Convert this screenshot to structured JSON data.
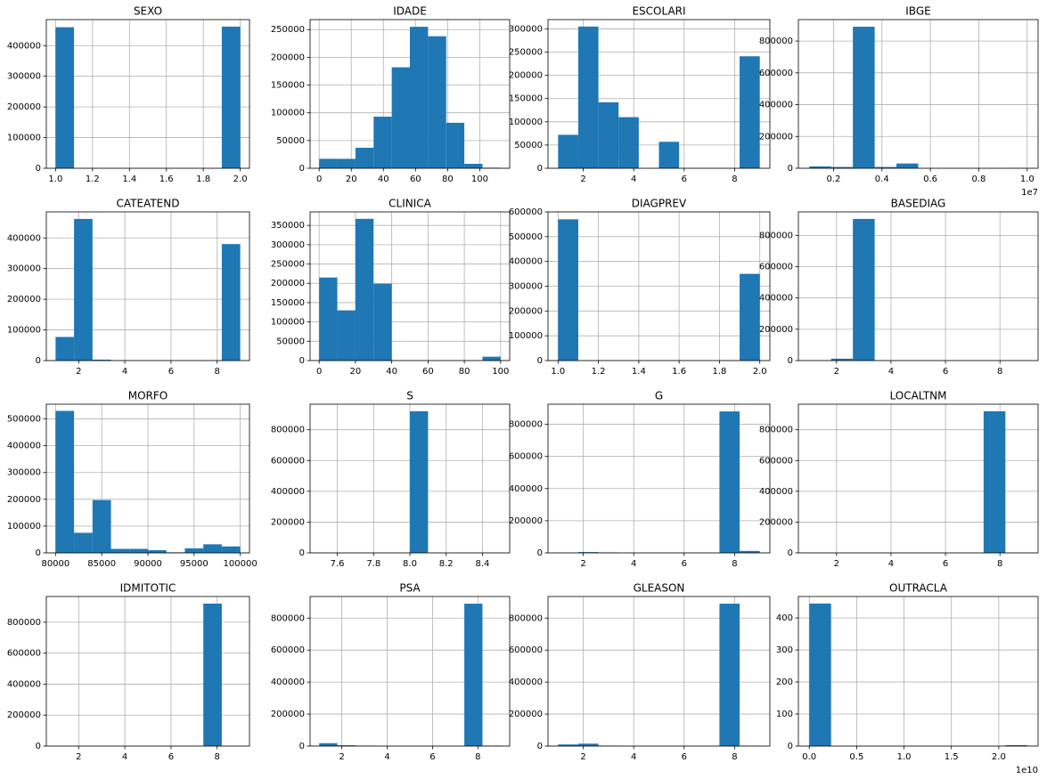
{
  "chart_data": [
    {
      "type": "histogram",
      "title": "SEXO",
      "color": "#1f77b4",
      "grid": true,
      "bins": [
        1.0,
        1.1,
        1.2,
        1.3,
        1.4,
        1.5,
        1.6,
        1.7,
        1.8,
        1.9,
        2.0
      ],
      "counts": [
        460000,
        0,
        0,
        0,
        0,
        0,
        0,
        0,
        0,
        462000
      ],
      "xlim": [
        0.95,
        2.05
      ],
      "xticks": [
        {
          "value": 1.0,
          "label": "1.0"
        },
        1.2,
        1.4,
        1.6,
        1.8,
        {
          "value": 2.0,
          "label": "2.0"
        }
      ],
      "ylim": [
        0,
        485000
      ],
      "yticks": [
        0,
        100000,
        200000,
        300000,
        400000
      ]
    },
    {
      "type": "histogram",
      "title": "IDADE",
      "color": "#1f77b4",
      "grid": true,
      "bins": [
        0,
        11.3,
        22.6,
        33.9,
        45.2,
        56.5,
        67.8,
        79.1,
        90.4,
        101.7,
        113
      ],
      "counts": [
        17000,
        17000,
        37000,
        93000,
        182000,
        255000,
        238000,
        82000,
        8000,
        1000
      ],
      "xlim": [
        -5.65,
        118.65
      ],
      "xticks": [
        0,
        20,
        40,
        60,
        80,
        100
      ],
      "ylim": [
        0,
        268000
      ],
      "yticks": [
        0,
        50000,
        100000,
        150000,
        200000,
        250000
      ]
    },
    {
      "type": "histogram",
      "title": "ESCOLARI",
      "color": "#1f77b4",
      "grid": true,
      "bins": [
        1,
        1.8,
        2.6,
        3.4,
        4.2,
        5,
        5.8,
        6.6,
        7.4,
        8.2,
        9
      ],
      "counts": [
        72000,
        305000,
        142000,
        110000,
        0,
        57000,
        0,
        0,
        0,
        241000
      ],
      "xlim": [
        0.6,
        9.4
      ],
      "xticks": [
        2,
        4,
        6,
        8
      ],
      "ylim": [
        0,
        320000
      ],
      "yticks": [
        0,
        50000,
        100000,
        150000,
        200000,
        250000,
        300000
      ]
    },
    {
      "type": "histogram",
      "title": "IBGE",
      "color": "#1f77b4",
      "grid": true,
      "x_offset_label": "1e7",
      "bins": [
        1000000,
        1900000,
        2800000,
        3700000,
        4600000,
        5500000,
        6400000,
        7300000,
        8200000,
        9100000,
        10000000
      ],
      "counts": [
        12000,
        8000,
        890000,
        8000,
        30000,
        0,
        0,
        0,
        0,
        1000
      ],
      "xlim": [
        550000,
        10450000
      ],
      "xticks": [
        {
          "value": 2000000,
          "label": "0.2"
        },
        {
          "value": 4000000,
          "label": "0.4"
        },
        {
          "value": 6000000,
          "label": "0.6"
        },
        {
          "value": 8000000,
          "label": "0.8"
        },
        {
          "value": 10000000,
          "label": "1.0"
        }
      ],
      "ylim": [
        0,
        935000
      ],
      "yticks": [
        0,
        200000,
        400000,
        600000,
        800000
      ]
    },
    {
      "type": "histogram",
      "title": "CATEATEND",
      "color": "#1f77b4",
      "grid": true,
      "bins": [
        1,
        1.8,
        2.6,
        3.4,
        4.2,
        5,
        5.8,
        6.6,
        7.4,
        8.2,
        9
      ],
      "counts": [
        77000,
        462000,
        3000,
        0,
        0,
        0,
        0,
        0,
        0,
        380000
      ],
      "xlim": [
        0.6,
        9.4
      ],
      "xticks": [
        2,
        4,
        6,
        8
      ],
      "ylim": [
        0,
        485000
      ],
      "yticks": [
        0,
        100000,
        200000,
        300000,
        400000
      ]
    },
    {
      "type": "histogram",
      "title": "CLINICA",
      "color": "#1f77b4",
      "grid": true,
      "bins": [
        0,
        10,
        20,
        30,
        40,
        50,
        60,
        70,
        80,
        90,
        100
      ],
      "counts": [
        215000,
        130000,
        367000,
        199000,
        0,
        0,
        0,
        0,
        0,
        10000
      ],
      "xlim": [
        -5,
        105
      ],
      "xticks": [
        0,
        20,
        40,
        60,
        80,
        100
      ],
      "ylim": [
        0,
        385000
      ],
      "yticks": [
        0,
        50000,
        100000,
        150000,
        200000,
        250000,
        300000,
        350000
      ]
    },
    {
      "type": "histogram",
      "title": "DIAGPREV",
      "color": "#1f77b4",
      "grid": true,
      "bins": [
        1.0,
        1.1,
        1.2,
        1.3,
        1.4,
        1.5,
        1.6,
        1.7,
        1.8,
        1.9,
        2.0
      ],
      "counts": [
        570000,
        0,
        0,
        0,
        0,
        0,
        0,
        0,
        0,
        350000
      ],
      "xlim": [
        0.95,
        2.05
      ],
      "xticks": [
        {
          "value": 1.0,
          "label": "1.0"
        },
        1.2,
        1.4,
        1.6,
        1.8,
        {
          "value": 2.0,
          "label": "2.0"
        }
      ],
      "ylim": [
        0,
        600000
      ],
      "yticks": [
        0,
        100000,
        200000,
        300000,
        400000,
        500000,
        600000
      ]
    },
    {
      "type": "histogram",
      "title": "BASEDIAG",
      "color": "#1f77b4",
      "grid": true,
      "bins": [
        1,
        1.8,
        2.6,
        3.4,
        4.2,
        5,
        5.8,
        6.6,
        7.4,
        8.2,
        9
      ],
      "counts": [
        0,
        12000,
        905000,
        0,
        0,
        0,
        0,
        0,
        0,
        0
      ],
      "xlim": [
        0.6,
        9.4
      ],
      "xticks": [
        2,
        4,
        6,
        8
      ],
      "ylim": [
        0,
        950000
      ],
      "yticks": [
        0,
        200000,
        400000,
        600000,
        800000
      ]
    },
    {
      "type": "histogram",
      "title": "MORFO",
      "color": "#1f77b4",
      "grid": true,
      "bins": [
        80000,
        82000,
        84000,
        86000,
        88000,
        90000,
        92000,
        94000,
        96000,
        98000,
        100000
      ],
      "counts": [
        530000,
        75000,
        197000,
        15000,
        15000,
        10000,
        2000,
        17000,
        32000,
        24000
      ],
      "xlim": [
        79000,
        101000
      ],
      "xticks": [
        80000,
        85000,
        90000,
        95000,
        100000
      ],
      "ylim": [
        0,
        555000
      ],
      "yticks": [
        0,
        100000,
        200000,
        300000,
        400000,
        500000
      ]
    },
    {
      "type": "histogram",
      "title": "S",
      "color": "#1f77b4",
      "grid": true,
      "bins": [
        7.5,
        7.6,
        7.7,
        7.8,
        7.9,
        8.0,
        8.1,
        8.2,
        8.3,
        8.4,
        8.5
      ],
      "counts": [
        0,
        0,
        0,
        0,
        0,
        920000,
        0,
        0,
        0,
        0
      ],
      "xlim": [
        7.45,
        8.55
      ],
      "xticks": [
        7.6,
        7.8,
        {
          "value": 8.0,
          "label": "8.0"
        },
        8.2,
        8.4
      ],
      "ylim": [
        0,
        966000
      ],
      "yticks": [
        0,
        200000,
        400000,
        600000,
        800000
      ]
    },
    {
      "type": "histogram",
      "title": "G",
      "color": "#1f77b4",
      "grid": true,
      "bins": [
        1,
        1.8,
        2.6,
        3.4,
        4.2,
        5,
        5.8,
        6.6,
        7.4,
        8.2,
        9
      ],
      "counts": [
        0,
        5000,
        3000,
        0,
        0,
        0,
        0,
        0,
        880000,
        12000
      ],
      "xlim": [
        0.6,
        9.4
      ],
      "xticks": [
        2,
        4,
        6,
        8
      ],
      "ylim": [
        0,
        925000
      ],
      "yticks": [
        0,
        200000,
        400000,
        600000,
        800000
      ]
    },
    {
      "type": "histogram",
      "title": "LOCALTNM",
      "color": "#1f77b4",
      "grid": true,
      "bins": [
        1,
        1.8,
        2.6,
        3.4,
        4.2,
        5,
        5.8,
        6.6,
        7.4,
        8.2,
        9
      ],
      "counts": [
        0,
        0,
        0,
        0,
        0,
        0,
        0,
        0,
        920000,
        0
      ],
      "xlim": [
        0.6,
        9.4
      ],
      "xticks": [
        2,
        4,
        6,
        8
      ],
      "ylim": [
        0,
        966000
      ],
      "yticks": [
        0,
        200000,
        400000,
        600000,
        800000
      ]
    },
    {
      "type": "histogram",
      "title": "IDMITOTIC",
      "color": "#1f77b4",
      "grid": true,
      "bins": [
        1,
        1.8,
        2.6,
        3.4,
        4.2,
        5,
        5.8,
        6.6,
        7.4,
        8.2,
        9
      ],
      "counts": [
        0,
        0,
        0,
        0,
        0,
        0,
        0,
        0,
        920000,
        0
      ],
      "xlim": [
        0.6,
        9.4
      ],
      "xticks": [
        2,
        4,
        6,
        8
      ],
      "ylim": [
        0,
        966000
      ],
      "yticks": [
        0,
        200000,
        400000,
        600000,
        800000
      ]
    },
    {
      "type": "histogram",
      "title": "PSA",
      "color": "#1f77b4",
      "grid": true,
      "bins": [
        1,
        1.8,
        2.6,
        3.4,
        4.2,
        5,
        5.8,
        6.6,
        7.4,
        8.2,
        9
      ],
      "counts": [
        18000,
        5000,
        3000,
        0,
        0,
        0,
        0,
        0,
        890000,
        3000
      ],
      "xlim": [
        0.6,
        9.4
      ],
      "xticks": [
        2,
        4,
        6,
        8
      ],
      "ylim": [
        0,
        935000
      ],
      "yticks": [
        0,
        200000,
        400000,
        600000,
        800000
      ]
    },
    {
      "type": "histogram",
      "title": "GLEASON",
      "color": "#1f77b4",
      "grid": true,
      "bins": [
        1,
        1.8,
        2.6,
        3.4,
        4.2,
        5,
        5.8,
        6.6,
        7.4,
        8.2,
        9
      ],
      "counts": [
        10000,
        15000,
        3000,
        0,
        0,
        0,
        0,
        0,
        890000,
        2000
      ],
      "xlim": [
        0.6,
        9.4
      ],
      "xticks": [
        2,
        4,
        6,
        8
      ],
      "ylim": [
        0,
        935000
      ],
      "yticks": [
        0,
        200000,
        400000,
        600000,
        800000
      ]
    },
    {
      "type": "histogram",
      "title": "OUTRACLA",
      "color": "#1f77b4",
      "grid": true,
      "x_offset_label": "1e10",
      "bins": [
        0,
        2300000000,
        4600000000,
        6900000000,
        9200000000,
        11500000000,
        13800000000,
        16100000000,
        18400000000,
        20700000000,
        23000000000
      ],
      "counts": [
        445,
        0,
        0,
        0,
        0,
        0,
        0,
        0,
        0,
        3
      ],
      "xlim": [
        -1150000000,
        24150000000
      ],
      "xticks": [
        {
          "value": 0,
          "label": "0.0"
        },
        {
          "value": 5000000000,
          "label": "0.5"
        },
        {
          "value": 10000000000,
          "label": "1.0"
        },
        {
          "value": 15000000000,
          "label": "1.5"
        },
        {
          "value": 20000000000,
          "label": "2.0"
        }
      ],
      "ylim": [
        0,
        467
      ],
      "yticks": [
        0,
        100,
        200,
        300,
        400
      ]
    }
  ]
}
